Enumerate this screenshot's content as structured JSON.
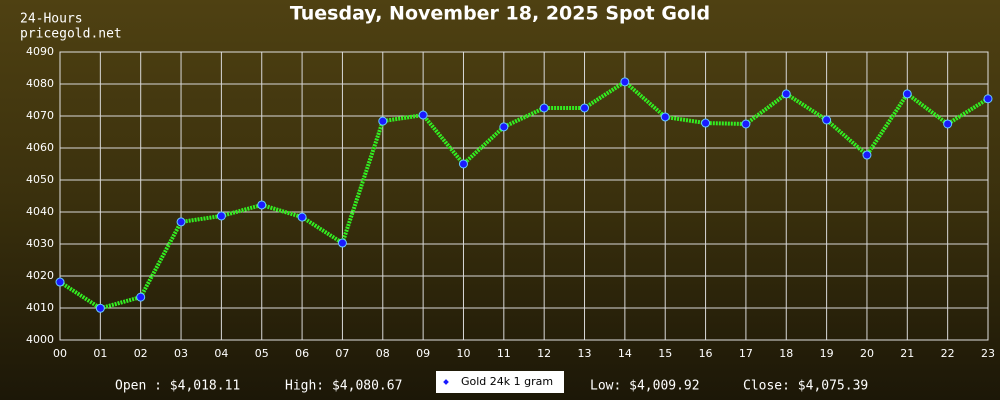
{
  "chart_data": {
    "type": "line",
    "title": "Tuesday, November 18, 2025 Spot Gold",
    "annotations": [
      "24-Hours",
      "pricegold.net"
    ],
    "categories": [
      "00",
      "01",
      "02",
      "03",
      "04",
      "05",
      "06",
      "07",
      "08",
      "09",
      "10",
      "11",
      "12",
      "13",
      "14",
      "15",
      "16",
      "17",
      "18",
      "19",
      "20",
      "21",
      "22",
      "23"
    ],
    "series": [
      {
        "name": "Gold 24k 1 gram",
        "color": "#33ee22",
        "marker_color": "#1a1aff",
        "values": [
          4018.11,
          4009.92,
          4013.4,
          4036.9,
          4038.75,
          4042.2,
          4038.4,
          4030.3,
          4068.4,
          4070.3,
          4055.0,
          4066.6,
          4072.5,
          4072.5,
          4080.67,
          4069.7,
          4067.8,
          4067.5,
          4076.9,
          4068.75,
          4057.8,
          4076.9,
          4067.5,
          4075.39
        ]
      }
    ],
    "ylim": [
      4000,
      4090
    ],
    "yticks": [
      4000,
      4010,
      4020,
      4030,
      4040,
      4050,
      4060,
      4070,
      4080,
      4090
    ],
    "grid": true,
    "stats": [
      "Open : $4,018.11",
      "High: $4,080.67",
      "Low: $4,009.92",
      "Close: $4,075.39"
    ]
  }
}
